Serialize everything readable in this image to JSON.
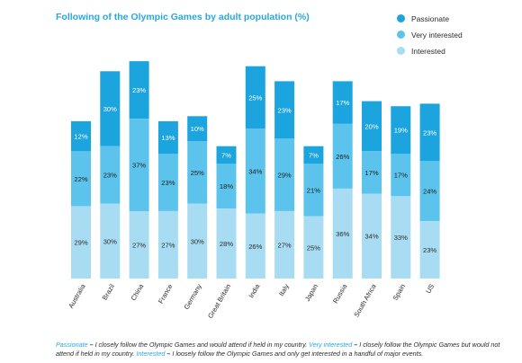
{
  "chart_data": {
    "type": "bar",
    "stacked": true,
    "title": "Following of the Olympic Games by adult population (%)",
    "categories": [
      "Australia",
      "Brazil",
      "China",
      "France",
      "Germany",
      "Great Britain",
      "India",
      "Italy",
      "Japan",
      "Russia",
      "South Africa",
      "Spain",
      "US"
    ],
    "series": [
      {
        "name": "Interested",
        "values": [
          29,
          30,
          27,
          27,
          30,
          28,
          26,
          27,
          25,
          36,
          34,
          33,
          23
        ],
        "color": "#a8dcf2"
      },
      {
        "name": "Very interested",
        "values": [
          22,
          23,
          37,
          23,
          25,
          18,
          34,
          29,
          21,
          26,
          17,
          17,
          24
        ],
        "color": "#5cc4ec"
      },
      {
        "name": "Passionate",
        "values": [
          12,
          30,
          23,
          13,
          10,
          7,
          25,
          23,
          7,
          17,
          20,
          19,
          23
        ],
        "color": "#1ca4df"
      }
    ],
    "data_labels": "value%",
    "legend_position": "top-right",
    "grid": false
  },
  "legend": {
    "items": [
      {
        "label": "Passionate",
        "color": "#1ca4df"
      },
      {
        "label": "Very interested",
        "color": "#5cc4ec"
      },
      {
        "label": "Interested",
        "color": "#a8dcf2"
      }
    ]
  },
  "footnote": {
    "passionate_term": "Passionate",
    "passionate_def": "I closely follow the Olympic Games and would attend if held in my country.",
    "very_term": "Very interested",
    "very_def": "I closely follow the Olympic Games but would not attend if held in my country.",
    "interested_term": "Interested",
    "interested_def": "I loosely follow the Olympic Games and only get interested in a handful of major events.",
    "separator": "–"
  }
}
